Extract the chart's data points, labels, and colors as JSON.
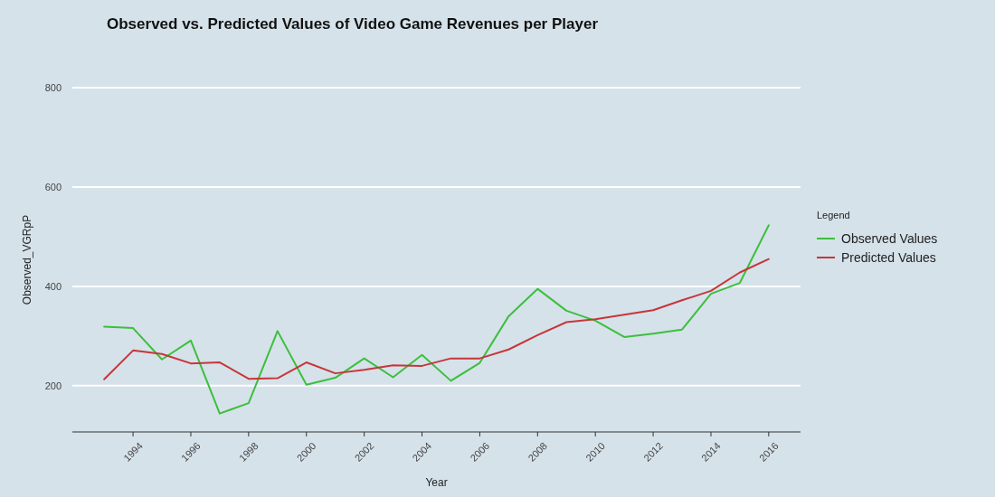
{
  "chart_data": {
    "type": "line",
    "title": "Observed vs. Predicted Values of Video Game Revenues per Player",
    "xlabel": "Year",
    "ylabel": "Observed_VGRpP",
    "legend_title": "Legend",
    "legend": "right",
    "grid": "y",
    "x": [
      1993,
      1994,
      1995,
      1996,
      1997,
      1998,
      1999,
      2000,
      2001,
      2002,
      2003,
      2004,
      2005,
      2006,
      2007,
      2008,
      2009,
      2010,
      2011,
      2012,
      2013,
      2014,
      2015,
      2016
    ],
    "xlim": [
      1991.9,
      2017.1
    ],
    "xticks": [
      1994,
      1996,
      1998,
      2000,
      2002,
      2004,
      2006,
      2008,
      2010,
      2012,
      2014,
      2016
    ],
    "ylim": [
      107,
      800
    ],
    "yticks": [
      200,
      400,
      600,
      800
    ],
    "series": [
      {
        "name": "Observed Values",
        "color": "#3cbf3c",
        "values": [
          319,
          316,
          253,
          291,
          144,
          165,
          310,
          202,
          216,
          255,
          217,
          262,
          210,
          246,
          340,
          395,
          351,
          331,
          298,
          305,
          313,
          385,
          407,
          523
        ]
      },
      {
        "name": "Predicted Values",
        "color": "#c8353a",
        "values": [
          213,
          271,
          264,
          245,
          247,
          214,
          215,
          247,
          225,
          232,
          241,
          240,
          255,
          255,
          273,
          302,
          328,
          334,
          343,
          352,
          372,
          391,
          428,
          455
        ]
      }
    ]
  }
}
